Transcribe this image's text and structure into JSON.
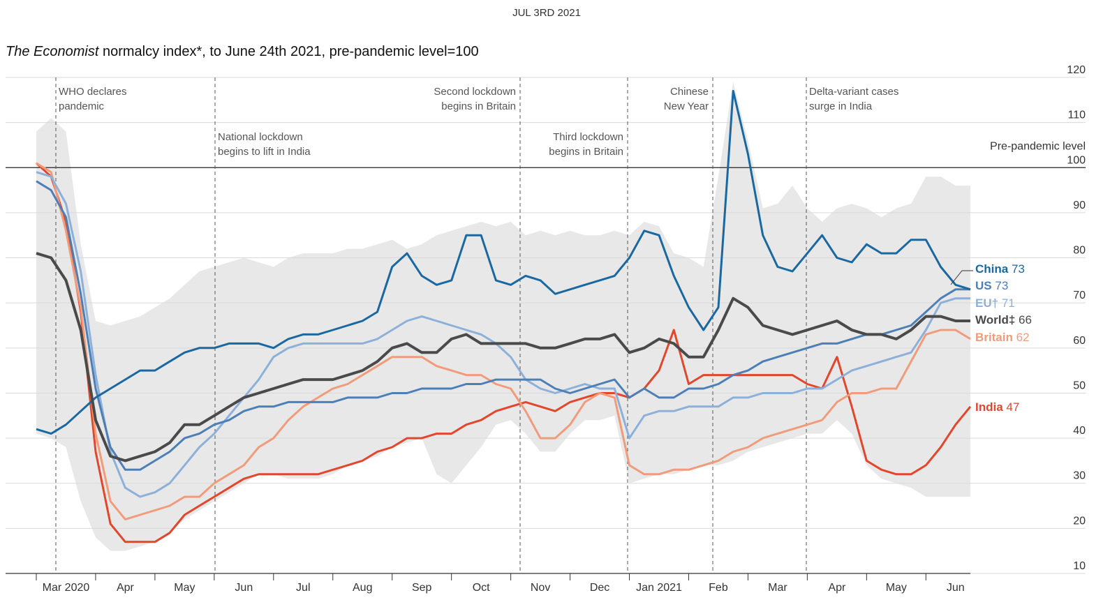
{
  "chart_data": {
    "type": "line",
    "date": "JUL 3RD 2021",
    "title_source": "The Economist",
    "title": " normalcy index*, to June 24th 2021, pre-pandemic level=100",
    "reference_label": "Pre-pandemic level",
    "categories": [
      null,
      null,
      "Mar 2020",
      null,
      null,
      null,
      "Apr",
      null,
      null,
      null,
      "May",
      null,
      null,
      null,
      "Jun",
      null,
      null,
      null,
      "Jul",
      null,
      null,
      null,
      "Aug",
      null,
      null,
      null,
      "Sep",
      null,
      null,
      null,
      "Oct",
      null,
      null,
      null,
      "Nov",
      null,
      null,
      null,
      "Dec",
      null,
      null,
      null,
      "Jan 2021",
      null,
      null,
      null,
      "Feb",
      null,
      null,
      null,
      "Mar",
      null,
      null,
      null,
      "Apr",
      null,
      null,
      null,
      "May",
      null,
      null,
      null,
      "Jun",
      null
    ],
    "ylim": [
      10,
      120
    ],
    "yticks": [
      10,
      20,
      30,
      40,
      50,
      60,
      70,
      80,
      90,
      100,
      110,
      120
    ],
    "grid": true,
    "reference_line": 100,
    "range": {
      "color": "#e8e8e8",
      "upper": [
        108,
        111,
        108,
        83,
        66,
        65,
        66,
        67,
        69,
        71,
        74,
        77,
        78,
        79,
        80,
        79,
        78,
        80,
        81,
        81,
        81,
        82,
        82,
        83,
        84,
        82,
        83,
        85,
        86,
        87,
        88,
        87,
        88,
        85,
        86,
        85,
        86,
        85,
        85,
        86,
        85,
        88,
        87,
        81,
        80,
        78,
        98,
        119,
        106,
        91,
        92,
        96,
        91,
        88,
        91,
        92,
        91,
        89,
        91,
        92,
        98,
        98,
        96,
        96
      ],
      "lower": [
        41,
        40,
        38,
        26,
        18,
        15,
        15,
        16,
        17,
        19,
        22,
        24,
        26,
        28,
        30,
        32,
        32,
        31,
        31,
        31,
        32,
        34,
        35,
        36,
        38,
        39,
        40,
        32,
        30,
        34,
        38,
        43,
        44,
        41,
        37,
        37,
        41,
        44,
        44,
        45,
        30,
        31,
        32,
        32,
        33,
        34,
        34,
        35,
        37,
        38,
        39,
        40,
        41,
        41,
        44,
        41,
        34,
        31,
        30,
        29,
        27,
        27,
        27,
        27
      ]
    },
    "series": [
      {
        "name": "China",
        "color": "#1a68a1",
        "values": [
          42,
          41,
          43,
          46,
          49,
          51,
          53,
          55,
          55,
          57,
          59,
          60,
          60,
          61,
          61,
          61,
          60,
          62,
          63,
          63,
          64,
          65,
          66,
          68,
          78,
          81,
          76,
          74,
          75,
          85,
          85,
          75,
          74,
          76,
          75,
          72,
          73,
          74,
          75,
          76,
          80,
          86,
          85,
          76,
          69,
          64,
          69,
          117,
          103,
          85,
          78,
          77,
          81,
          85,
          80,
          79,
          83,
          81,
          81,
          84,
          84,
          78,
          74,
          73
        ]
      },
      {
        "name": "US",
        "color": "#4d7fb7",
        "values": [
          97,
          95,
          89,
          72,
          51,
          38,
          33,
          33,
          35,
          37,
          40,
          41,
          43,
          44,
          46,
          47,
          47,
          48,
          48,
          48,
          48,
          49,
          49,
          49,
          50,
          50,
          51,
          51,
          51,
          52,
          52,
          53,
          53,
          53,
          53,
          51,
          50,
          51,
          52,
          53,
          49,
          51,
          49,
          49,
          51,
          51,
          52,
          54,
          55,
          57,
          58,
          59,
          60,
          61,
          61,
          62,
          63,
          63,
          64,
          65,
          68,
          71,
          73,
          73
        ]
      },
      {
        "name": "EU†",
        "color": "#8db0da",
        "values": [
          99,
          98,
          92,
          77,
          54,
          37,
          29,
          27,
          28,
          30,
          34,
          38,
          41,
          45,
          49,
          53,
          58,
          60,
          61,
          61,
          61,
          61,
          61,
          62,
          64,
          66,
          67,
          66,
          65,
          64,
          63,
          61,
          58,
          53,
          51,
          50,
          51,
          52,
          51,
          51,
          40,
          45,
          46,
          46,
          47,
          47,
          47,
          49,
          49,
          50,
          50,
          50,
          51,
          51,
          53,
          55,
          56,
          57,
          58,
          59,
          64,
          70,
          71,
          71
        ]
      },
      {
        "name": "World‡",
        "color": "#4a4a4a",
        "values": [
          81,
          80,
          75,
          64,
          44,
          36,
          35,
          36,
          37,
          39,
          43,
          43,
          45,
          47,
          49,
          50,
          51,
          52,
          53,
          53,
          53,
          54,
          55,
          57,
          60,
          61,
          59,
          59,
          62,
          63,
          61,
          61,
          61,
          61,
          60,
          60,
          61,
          62,
          62,
          63,
          59,
          60,
          62,
          61,
          58,
          58,
          64,
          71,
          69,
          65,
          64,
          63,
          64,
          65,
          66,
          64,
          63,
          63,
          62,
          64,
          67,
          67,
          66,
          66
        ]
      },
      {
        "name": "Britain",
        "color": "#f29b7a",
        "values": [
          101,
          99,
          86,
          69,
          41,
          26,
          22,
          23,
          24,
          25,
          27,
          27,
          30,
          32,
          34,
          38,
          40,
          44,
          47,
          49,
          51,
          52,
          54,
          56,
          58,
          58,
          58,
          56,
          55,
          54,
          54,
          52,
          51,
          46,
          40,
          40,
          43,
          48,
          50,
          49,
          34,
          32,
          32,
          33,
          33,
          34,
          35,
          37,
          38,
          40,
          41,
          42,
          43,
          44,
          48,
          50,
          50,
          51,
          51,
          57,
          63,
          64,
          64,
          62
        ]
      },
      {
        "name": "India",
        "color": "#e3462a",
        "values": [
          101,
          98,
          88,
          68,
          37,
          21,
          17,
          17,
          17,
          19,
          23,
          25,
          27,
          29,
          31,
          32,
          32,
          32,
          32,
          32,
          33,
          34,
          35,
          37,
          38,
          40,
          40,
          41,
          41,
          43,
          44,
          46,
          47,
          48,
          47,
          46,
          48,
          49,
          50,
          50,
          49,
          51,
          55,
          64,
          52,
          54,
          54,
          54,
          54,
          54,
          54,
          54,
          52,
          51,
          58,
          47,
          35,
          33,
          32,
          32,
          34,
          38,
          43,
          47
        ]
      }
    ],
    "annotations": [
      {
        "lines": [
          "WHO declares",
          "pandemic"
        ]
      },
      {
        "lines": [
          "National lockdown",
          "begins to lift in India"
        ]
      },
      {
        "lines": [
          "Second lockdown",
          "begins in Britain"
        ]
      },
      {
        "lines": [
          "Third lockdown",
          "begins in Britain"
        ]
      },
      {
        "lines": [
          "Chinese",
          "New Year"
        ]
      },
      {
        "lines": [
          "Delta-variant cases",
          "surge in India"
        ]
      }
    ]
  }
}
